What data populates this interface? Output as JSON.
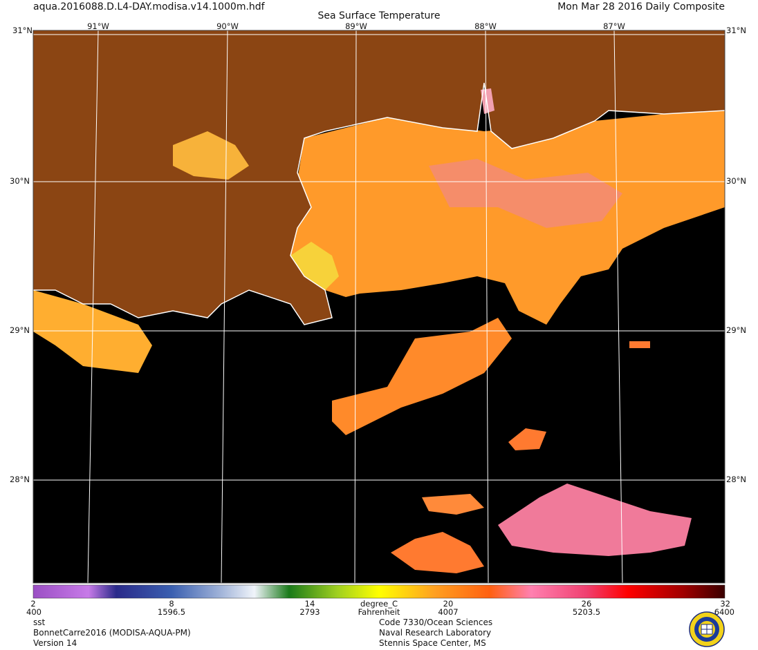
{
  "header": {
    "filename": "aqua.2016088.D.L4-DAY.modisa.v14.1000m.hdf",
    "title": "Sea Surface Temperature",
    "date": "Mon Mar 28 2016 Daily Composite"
  },
  "map": {
    "lon_labels": [
      "91°W",
      "90°W",
      "89°W",
      "88°W",
      "87°W"
    ],
    "lat_labels": [
      "30°N",
      "29°N",
      "28°N"
    ],
    "corner_top_left": "31°N",
    "corner_top_right": "31°N",
    "colors": {
      "land": "#8b4513",
      "nodata": "#000000",
      "grid": "#ffffff",
      "sst_warm": "#ff9a2a",
      "sst_cool": "#f5c83a",
      "sst_hot": "#f07a9a"
    }
  },
  "colorbar": {
    "celsius_ticks": [
      "2",
      "8",
      "14",
      "20",
      "26",
      "32"
    ],
    "fahrenheit_ticks": [
      "400",
      "1596.5",
      "2793",
      "4007",
      "5203.5",
      "6400"
    ],
    "unit_c": "degree_C",
    "unit_f": "Fahrenheit"
  },
  "footer": {
    "left": [
      "sst",
      "BonnetCarre2016 (MODISA-AQUA-PM)",
      "Version 14"
    ],
    "center": [
      "Code 7330/Ocean Sciences",
      "Naval Research Laboratory",
      "Stennis Space Center, MS"
    ]
  }
}
